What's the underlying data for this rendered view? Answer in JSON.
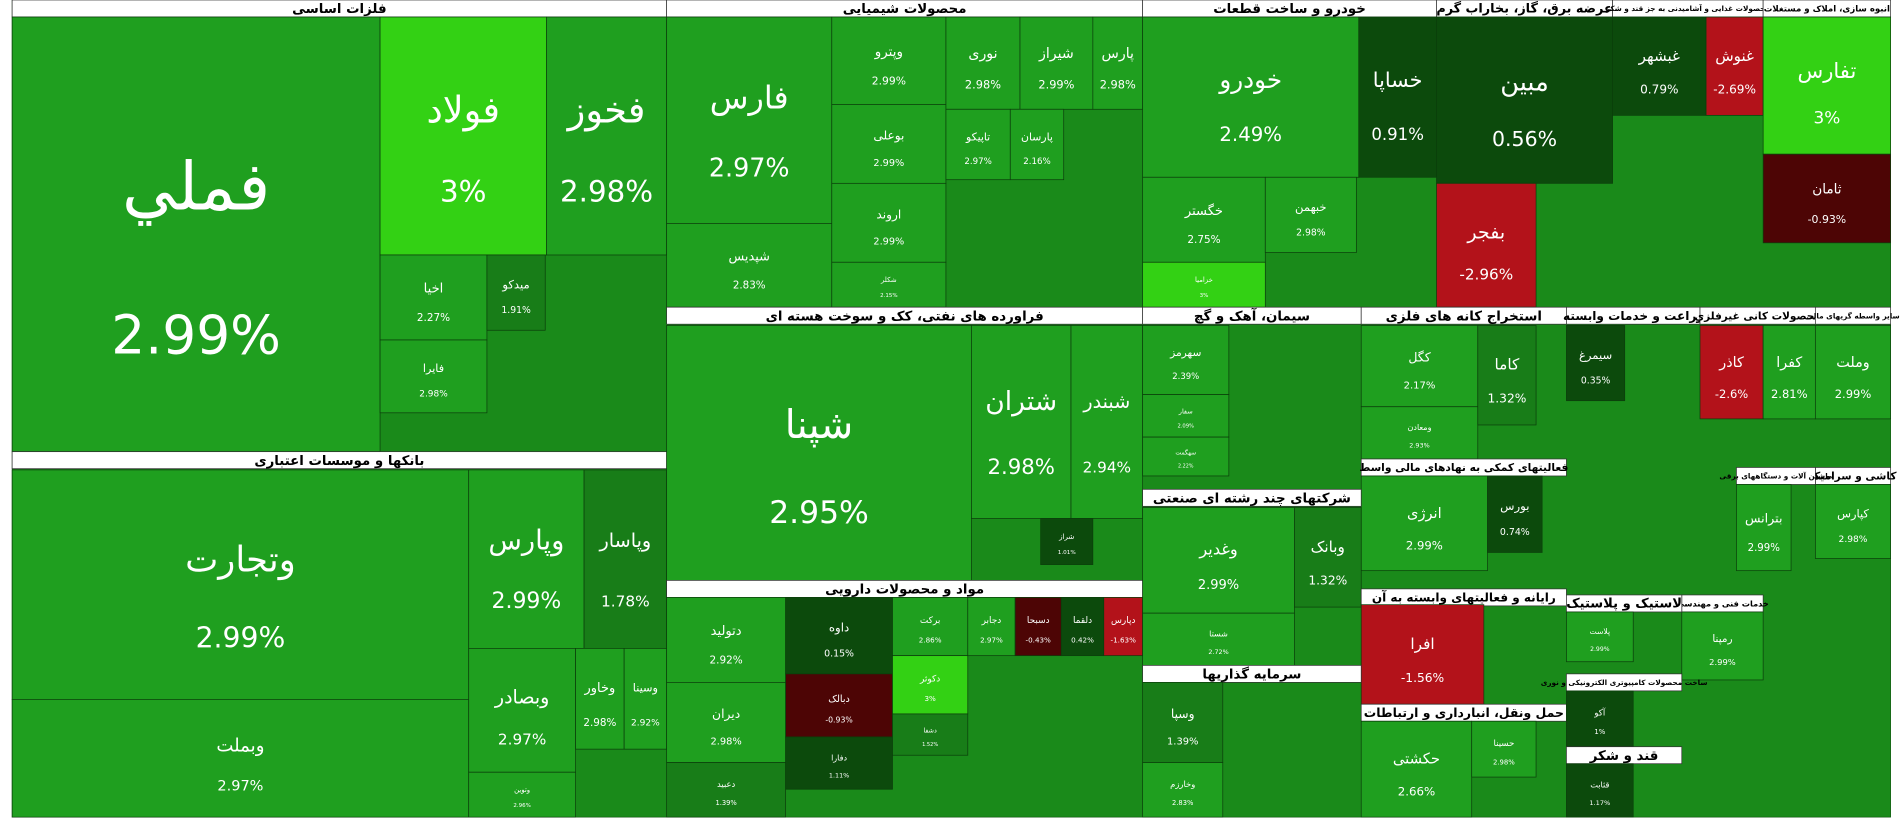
{
  "chart_data": {
    "type": "treemap",
    "sectors": [
      {
        "name": "فلزات اساسی",
        "categories": [
          "فملي",
          "فولاد",
          "فخوز",
          "اخیا",
          "فایرا",
          "میدکو"
        ],
        "values": [
          2.99,
          3,
          2.98,
          2.27,
          2.98,
          1.91
        ],
        "value_labels": [
          "2.99%",
          "3%",
          "2.98%",
          "2.27%",
          "2.98%",
          "1.91%"
        ]
      },
      {
        "name": "بانکها و موسسات اعتباری",
        "categories": [
          "وتجارت",
          "وبملت",
          "وپارس",
          "وپاسار",
          "وبصادر",
          "وخاور",
          "وسینا",
          "وتوین"
        ],
        "values": [
          2.99,
          2.97,
          2.99,
          1.78,
          2.97,
          2.98,
          2.92,
          2.96
        ],
        "value_labels": [
          "2.99%",
          "2.97%",
          "2.99%",
          "1.78%",
          "2.97%",
          "2.98%",
          "2.92%",
          "2.96%"
        ]
      },
      {
        "name": "محصولات شیمیایی",
        "categories": [
          "فارس",
          "شپدیس",
          "وپترو",
          "بوعلی",
          "اروند",
          "شکلر",
          "نوری",
          "شیراز",
          "پارس",
          "تاپیکو",
          "پارسان"
        ],
        "values": [
          2.97,
          2.83,
          2.99,
          2.99,
          2.99,
          2.15,
          2.98,
          2.99,
          2.98,
          2.97,
          2.16
        ],
        "value_labels": [
          "2.97%",
          "2.83%",
          "2.99%",
          "2.99%",
          "2.99%",
          "2.15%",
          "2.98%",
          "2.99%",
          "2.98%",
          "2.97%",
          "2.16%"
        ]
      },
      {
        "name": "فراورده های نفتی، کک و سوخت هسته ای",
        "categories": [
          "شپنا",
          "شتران",
          "شبندر",
          "شراز"
        ],
        "values": [
          2.95,
          2.98,
          2.94,
          1.01
        ],
        "value_labels": [
          "2.95%",
          "2.98%",
          "2.94%",
          "1.01%"
        ]
      },
      {
        "name": "مواد و محصولات دارویی",
        "categories": [
          "دتولید",
          "دیران",
          "دعبید",
          "داوه",
          "دبالک",
          "دفارا",
          "برکت",
          "دکوثر",
          "دشفا",
          "دجابر",
          "دسبحا",
          "دلقما",
          "دپارس"
        ],
        "values": [
          2.92,
          2.98,
          1.39,
          0.15,
          -0.93,
          1.11,
          2.86,
          3,
          1.52,
          2.97,
          -0.43,
          0.42,
          -1.63
        ],
        "value_labels": [
          "2.92%",
          "2.98%",
          "1.39%",
          "0.15%",
          "-0.93%",
          "1.11%",
          "2.86%",
          "3%",
          "1.52%",
          "2.97%",
          "-0.43%",
          "0.42%",
          "-1.63%"
        ]
      },
      {
        "name": "خودرو و ساخت قطعات",
        "categories": [
          "خودرو",
          "خساپا",
          "خگستر",
          "خبهمن",
          "خزامیا"
        ],
        "values": [
          2.49,
          0.91,
          2.75,
          2.98,
          3
        ],
        "value_labels": [
          "2.49%",
          "0.91%",
          "2.75%",
          "2.98%",
          "3%"
        ]
      },
      {
        "name": "عرضه برق، گاز، بخاراب گرم",
        "categories": [
          "مبین",
          "بفجر"
        ],
        "values": [
          0.56,
          -2.96
        ],
        "value_labels": [
          "0.56%",
          "-2.96%"
        ]
      },
      {
        "name": "محصولات غذایی و آشامیدنی به جز قند و شکر",
        "categories": [
          "غبشهر",
          "غنوش"
        ],
        "values": [
          0.79,
          -2.69
        ],
        "value_labels": [
          "0.79%",
          "-2.69%"
        ]
      },
      {
        "name": "انبوه سازی، املاک و مستغلات",
        "categories": [
          "تفارس",
          "ثامان"
        ],
        "values": [
          3,
          -0.93
        ],
        "value_labels": [
          "3%",
          "-0.93%"
        ]
      },
      {
        "name": "سیمان، آهک و گچ",
        "categories": [
          "سهرمز",
          "سفار",
          "سهگمت"
        ],
        "values": [
          2.39,
          2.09,
          2.22
        ],
        "value_labels": [
          "2.39%",
          "2.09%",
          "2.22%"
        ]
      },
      {
        "name": "استخراج کانه های فلزی",
        "categories": [
          "کگل",
          "ومعادن",
          "کاما"
        ],
        "values": [
          2.17,
          2.93,
          1.32
        ],
        "value_labels": [
          "2.17%",
          "2.93%",
          "1.32%"
        ]
      },
      {
        "name": "زراعت و خدمات وابسته",
        "categories": [
          "سیمرغ"
        ],
        "values": [
          0.35
        ],
        "value_labels": [
          "0.35%"
        ]
      },
      {
        "name": "محصولات کانی غیرفلزی",
        "categories": [
          "کاذر",
          "کفرا"
        ],
        "values": [
          -2.6,
          2.81
        ],
        "value_labels": [
          "-2.6%",
          "2.81%"
        ]
      },
      {
        "name": "سایر واسطه گریهای مالی",
        "categories": [
          "وملت"
        ],
        "values": [
          2.99
        ],
        "value_labels": [
          "2.99%"
        ]
      },
      {
        "name": "فعالیتهای کمکی به نهادهای مالی واسط",
        "categories": [
          "انرژی",
          "بورس"
        ],
        "values": [
          2.99,
          0.74
        ],
        "value_labels": [
          "2.99%",
          "0.74%"
        ]
      },
      {
        "name": "شرکتهای چند رشته ای صنعتی",
        "categories": [
          "وغدیر",
          "شستا",
          "وبانک"
        ],
        "values": [
          2.99,
          2.72,
          1.32
        ],
        "value_labels": [
          "2.99%",
          "2.72%",
          "1.32%"
        ]
      },
      {
        "name": "رایانه و فعالیتهای وابسته به آن",
        "categories": [
          "افرا"
        ],
        "values": [
          -1.56
        ],
        "value_labels": [
          "-1.56%"
        ]
      },
      {
        "name": "سرمایه گذاریها",
        "categories": [
          "وسپا",
          "وخارزم"
        ],
        "values": [
          1.39,
          2.83
        ],
        "value_labels": [
          "1.39%",
          "2.83%"
        ]
      },
      {
        "name": "حمل ونقل، انبارداری و ارتباطات",
        "categories": [
          "حکشتی",
          "حسینا"
        ],
        "values": [
          2.66,
          2.98
        ],
        "value_labels": [
          "2.66%",
          "2.98%"
        ]
      },
      {
        "name": "کاشی و سرامیک",
        "categories": [
          "کپارس"
        ],
        "values": [
          2.98
        ],
        "value_labels": [
          "2.98%"
        ]
      },
      {
        "name": "خدمات فنی و مهندسی",
        "categories": [
          "رمپنا"
        ],
        "values": [
          2.99
        ],
        "value_labels": [
          "2.99%"
        ]
      },
      {
        "name": "لاستیک و پلاستیک",
        "categories": [
          "پلاست"
        ],
        "values": [
          2.99
        ],
        "value_labels": [
          "2.99%"
        ]
      },
      {
        "name": "ساخت محصولات کامپیوتری الکترونیکی و نوری",
        "categories": [
          "آکو"
        ],
        "values": [
          1
        ],
        "value_labels": [
          "1%"
        ]
      },
      {
        "name": "قند و شکر",
        "categories": [
          "قثابت"
        ],
        "values": [
          1.17
        ],
        "value_labels": [
          "1.17%"
        ]
      },
      {
        "name": "ماشین آلات و دستگاههای برقی",
        "categories": [
          "بترانس"
        ],
        "values": [
          2.99
        ],
        "value_labels": [
          "2.99%"
        ]
      }
    ]
  }
}
